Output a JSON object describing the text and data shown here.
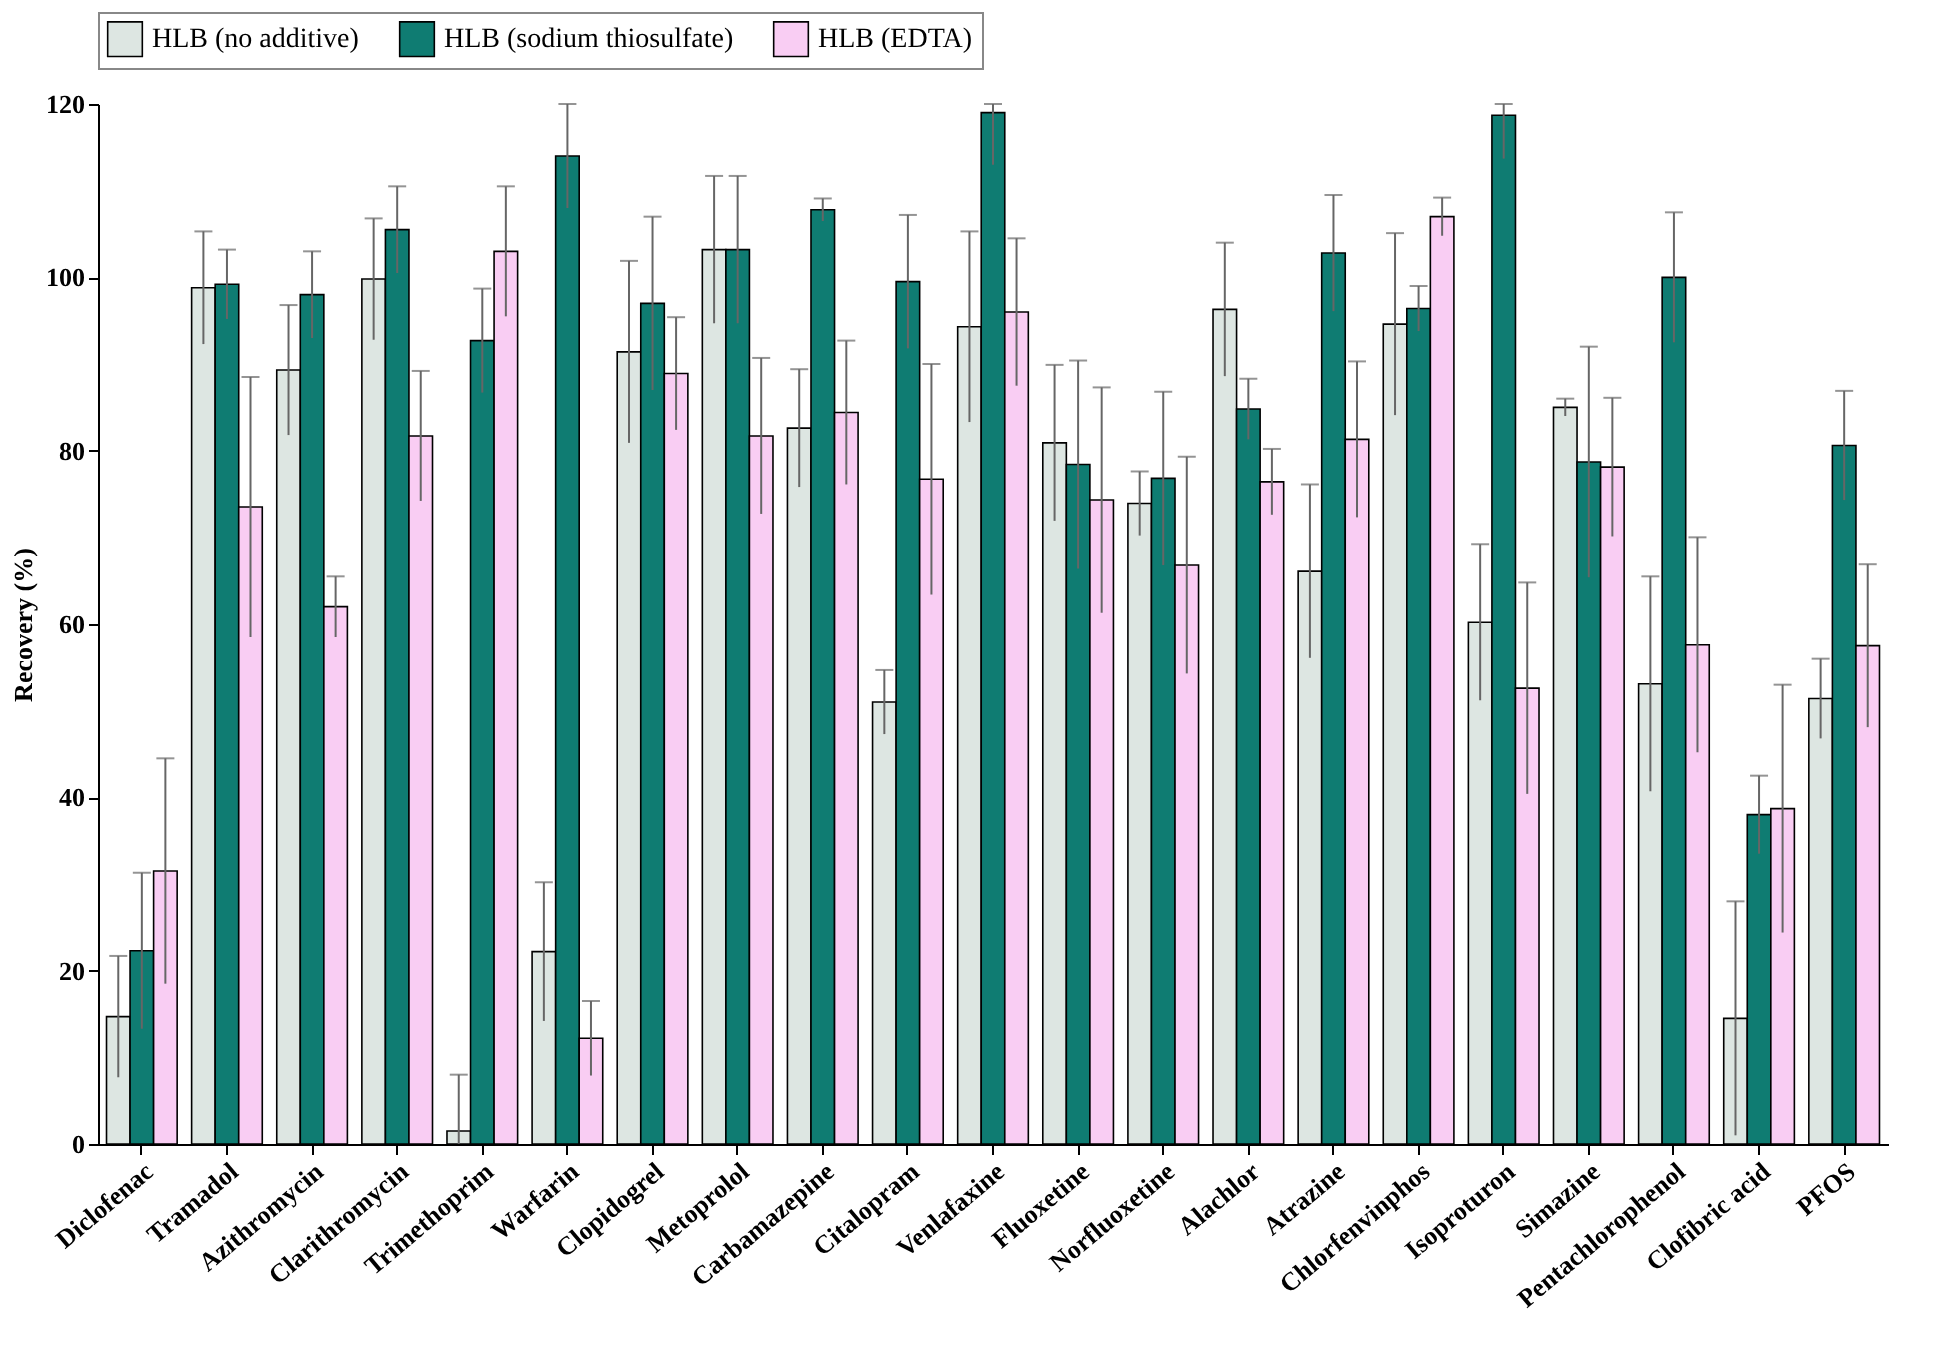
{
  "chart_data": {
    "type": "bar",
    "ylabel": "Recovery (%)",
    "categories": [
      "Diclofenac",
      "Tramadol",
      "Azithromycin",
      "Clarithromycin",
      "Trimethoprim",
      "Warfarin",
      "Clopidogrel",
      "Metoprolol",
      "Carbamazepine",
      "Citalopram",
      "Venlafaxine",
      "Fluoxetine",
      "Norfluoxetine",
      "Alachlor",
      "Atrazine",
      "Chlorfenvinphos",
      "Isoproturon",
      "Simazine",
      "Pentachlorophenol",
      "Clofibric acid",
      "PFOS"
    ],
    "series": [
      {
        "name": "HLB (no additive)",
        "color": "#dde6e2",
        "values": [
          14.7,
          98.8,
          89.3,
          99.8,
          1.5,
          22.2,
          91.4,
          103.2,
          82.6,
          51,
          94.3,
          80.9,
          73.9,
          96.3,
          66.1,
          94.6,
          60.2,
          85,
          53.1,
          14.5,
          51.4
        ],
        "errors": [
          7,
          6.5,
          7.5,
          7,
          [
            0,
            8
          ],
          8,
          10.5,
          8.5,
          6.8,
          3.7,
          11,
          9,
          3.7,
          7.7,
          10,
          10.5,
          9,
          1,
          12.4,
          13.5,
          4.6
        ]
      },
      {
        "name": "HLB (sodium thiosulfate)",
        "color": "#0f7c72",
        "values": [
          22.3,
          99.2,
          98,
          105.5,
          92.7,
          114,
          97,
          103.2,
          107.8,
          99.5,
          119,
          78.4,
          76.8,
          84.8,
          102.8,
          96.4,
          118.7,
          78.7,
          100,
          38,
          80.6
        ],
        "errors": [
          9,
          4,
          5,
          5,
          6,
          [
            108,
            120
          ],
          10,
          8.5,
          1.3,
          7.7,
          [
            113,
            120
          ],
          12,
          10,
          3.5,
          6.7,
          2.6,
          [
            113.7,
            120
          ],
          13.3,
          7.5,
          4.5,
          6.3
        ]
      },
      {
        "name": "HLB (EDTA)",
        "color": "#f9cdf3",
        "values": [
          31.5,
          73.5,
          62,
          81.7,
          103,
          12.2,
          88.9,
          81.7,
          84.4,
          76.7,
          96,
          74.3,
          66.8,
          76.4,
          81.3,
          107,
          52.6,
          78.1,
          57.6,
          38.7,
          57.5
        ],
        "errors": [
          13,
          15,
          3.5,
          7.5,
          7.5,
          4.3,
          6.5,
          9,
          8.3,
          13.3,
          8.5,
          13,
          12.5,
          3.8,
          9,
          2.2,
          12.2,
          8,
          12.4,
          14.3,
          9.4
        ]
      }
    ],
    "ylim": [
      0,
      120
    ],
    "yticks": [
      0,
      20,
      40,
      60,
      80,
      100,
      120
    ],
    "grid": false,
    "legend": "top"
  }
}
